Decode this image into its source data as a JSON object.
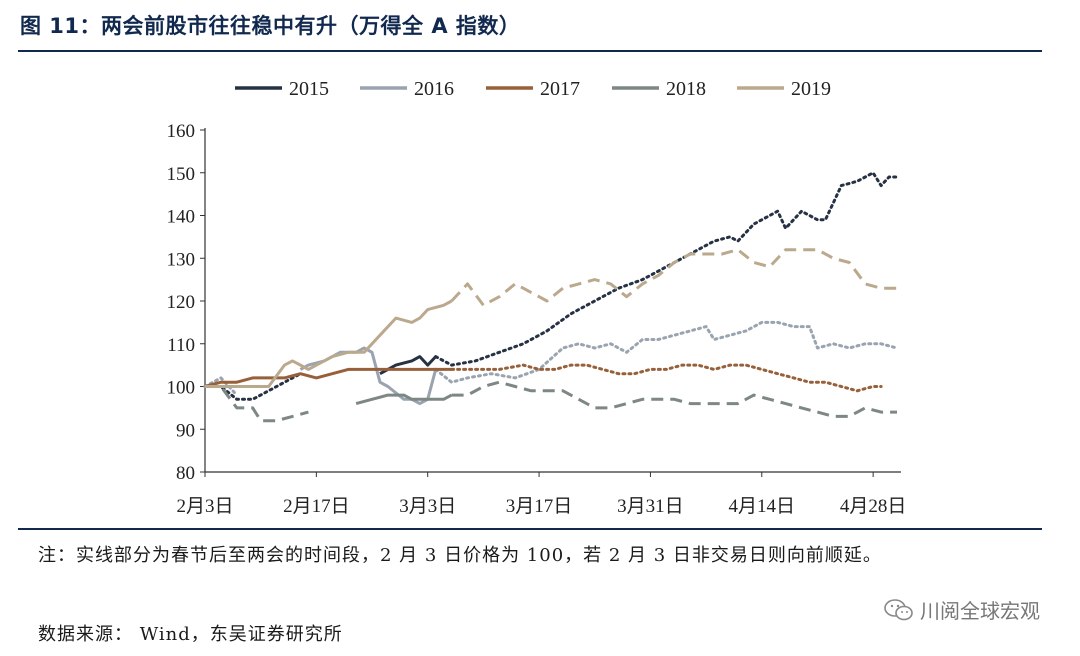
{
  "title": "图 11：两会前股市往往稳中有升（万得全 A 指数）",
  "note": "注：实线部分为春节后至两会的时间段，2 月 3 日价格为 100，若 2 月 3 日非交易日则向前顺延。",
  "source": "数据来源：   Wind，东吴证券研究所",
  "watermark": "川阅全球宏观",
  "watermark_icon": "wechat-icon",
  "chart_data": {
    "type": "line",
    "y_ticks": [
      "80",
      "90",
      "100",
      "110",
      "120",
      "130",
      "140",
      "150",
      "160"
    ],
    "ylim": [
      80,
      160
    ],
    "x_ticks": [
      "2月3日",
      "2月17日",
      "3月3日",
      "3月17日",
      "3月31日",
      "4月14日",
      "4月28日"
    ],
    "x_tick_days": [
      0,
      14,
      28,
      42,
      56,
      70,
      84
    ],
    "xlim": [
      0,
      87
    ],
    "legend": [
      {
        "name": "2015",
        "color": "#263244"
      },
      {
        "name": "2016",
        "color": "#9aa3b0"
      },
      {
        "name": "2017",
        "color": "#98603a"
      },
      {
        "name": "2018",
        "color": "#7d8784"
      },
      {
        "name": "2019",
        "color": "#bba98e"
      }
    ],
    "series": [
      {
        "name": "2015",
        "color": "#263244",
        "dash_style": "dotted",
        "segments": [
          {
            "style": "dotted",
            "points": [
              [
                0,
                100
              ],
              [
                2,
                100
              ],
              [
                4,
                97
              ],
              [
                6,
                97
              ],
              [
                8,
                99
              ],
              [
                10,
                101
              ],
              [
                12,
                103
              ]
            ]
          },
          {
            "style": "solid",
            "points": [
              [
                22,
                103
              ],
              [
                24,
                105
              ],
              [
                26,
                106
              ],
              [
                27,
                107
              ],
              [
                28,
                105
              ],
              [
                29,
                107
              ]
            ]
          },
          {
            "style": "dotted",
            "points": [
              [
                29,
                107
              ],
              [
                31,
                105
              ],
              [
                34,
                106
              ],
              [
                37,
                108
              ],
              [
                40,
                110
              ],
              [
                43,
                113
              ],
              [
                46,
                117
              ],
              [
                49,
                120
              ],
              [
                52,
                123
              ],
              [
                55,
                125
              ],
              [
                58,
                128
              ],
              [
                60,
                130
              ],
              [
                62,
                132
              ],
              [
                64,
                134
              ],
              [
                66,
                135
              ],
              [
                67,
                134
              ],
              [
                69,
                138
              ],
              [
                71,
                140
              ],
              [
                72,
                141
              ],
              [
                73,
                137
              ],
              [
                75,
                141
              ],
              [
                77,
                139
              ],
              [
                78,
                139
              ],
              [
                79,
                143
              ],
              [
                80,
                147
              ],
              [
                82,
                148
              ],
              [
                83,
                149
              ],
              [
                84,
                150
              ],
              [
                85,
                147
              ],
              [
                86,
                149
              ],
              [
                87,
                149
              ]
            ]
          }
        ]
      },
      {
        "name": "2016",
        "color": "#9aa3b0",
        "segments": [
          {
            "style": "dotted",
            "points": [
              [
                0,
                100
              ],
              [
                1,
                101
              ],
              [
                2,
                102
              ],
              [
                4,
                98
              ]
            ]
          },
          {
            "style": "solid",
            "points": [
              [
                12,
                104
              ],
              [
                13,
                105
              ],
              [
                15,
                106
              ],
              [
                17,
                108
              ],
              [
                19,
                108
              ],
              [
                20,
                109
              ],
              [
                21,
                108
              ],
              [
                22,
                101
              ],
              [
                23,
                100
              ],
              [
                25,
                97
              ],
              [
                26,
                97
              ],
              [
                27,
                96
              ],
              [
                28,
                97
              ],
              [
                29,
                104
              ]
            ]
          },
          {
            "style": "dotted",
            "points": [
              [
                29,
                104
              ],
              [
                31,
                101
              ],
              [
                33,
                102
              ],
              [
                36,
                103
              ],
              [
                39,
                102
              ],
              [
                42,
                104
              ],
              [
                45,
                109
              ],
              [
                47,
                110
              ],
              [
                49,
                109
              ],
              [
                51,
                110
              ],
              [
                53,
                108
              ],
              [
                55,
                111
              ],
              [
                57,
                111
              ],
              [
                59,
                112
              ],
              [
                61,
                113
              ],
              [
                63,
                114
              ],
              [
                64,
                111
              ],
              [
                66,
                112
              ],
              [
                68,
                113
              ],
              [
                70,
                115
              ],
              [
                72,
                115
              ],
              [
                74,
                114
              ],
              [
                76,
                114
              ],
              [
                77,
                109
              ],
              [
                79,
                110
              ],
              [
                81,
                109
              ],
              [
                83,
                110
              ],
              [
                85,
                110
              ],
              [
                87,
                109
              ]
            ]
          }
        ]
      },
      {
        "name": "2017",
        "color": "#98603a",
        "segments": [
          {
            "style": "solid",
            "points": [
              [
                0,
                100
              ],
              [
                2,
                101
              ],
              [
                4,
                101
              ],
              [
                6,
                102
              ],
              [
                8,
                102
              ],
              [
                10,
                102
              ],
              [
                12,
                103
              ],
              [
                14,
                102
              ],
              [
                16,
                103
              ],
              [
                18,
                104
              ],
              [
                20,
                104
              ],
              [
                22,
                104
              ],
              [
                24,
                104
              ],
              [
                26,
                104
              ],
              [
                28,
                104
              ],
              [
                30,
                104
              ],
              [
                31,
                104
              ]
            ]
          },
          {
            "style": "dotted",
            "points": [
              [
                31,
                104
              ],
              [
                34,
                104
              ],
              [
                37,
                104
              ],
              [
                40,
                105
              ],
              [
                42,
                104
              ],
              [
                44,
                104
              ],
              [
                46,
                105
              ],
              [
                48,
                105
              ],
              [
                50,
                104
              ],
              [
                52,
                103
              ],
              [
                54,
                103
              ],
              [
                56,
                104
              ],
              [
                58,
                104
              ],
              [
                60,
                105
              ],
              [
                62,
                105
              ],
              [
                64,
                104
              ],
              [
                66,
                105
              ],
              [
                68,
                105
              ],
              [
                70,
                104
              ],
              [
                72,
                103
              ],
              [
                74,
                102
              ],
              [
                76,
                101
              ],
              [
                78,
                101
              ],
              [
                80,
                100
              ],
              [
                82,
                99
              ],
              [
                84,
                100
              ],
              [
                85,
                100
              ]
            ]
          }
        ]
      },
      {
        "name": "2018",
        "color": "#7d8784",
        "segments": [
          {
            "style": "dashed",
            "points": [
              [
                0,
                100
              ],
              [
                2,
                100
              ],
              [
                4,
                95
              ],
              [
                6,
                95
              ],
              [
                7,
                92
              ],
              [
                9,
                92
              ],
              [
                11,
                93
              ],
              [
                13,
                94
              ]
            ]
          },
          {
            "style": "solid",
            "points": [
              [
                19,
                96
              ],
              [
                21,
                97
              ],
              [
                23,
                98
              ],
              [
                25,
                98
              ],
              [
                26,
                97
              ],
              [
                28,
                97
              ],
              [
                30,
                97
              ],
              [
                31,
                98
              ]
            ]
          },
          {
            "style": "dashed",
            "points": [
              [
                31,
                98
              ],
              [
                33,
                98
              ],
              [
                35,
                100
              ],
              [
                37,
                101
              ],
              [
                39,
                100
              ],
              [
                41,
                99
              ],
              [
                43,
                99
              ],
              [
                45,
                99
              ],
              [
                47,
                97
              ],
              [
                49,
                95
              ],
              [
                51,
                95
              ],
              [
                53,
                96
              ],
              [
                55,
                97
              ],
              [
                57,
                97
              ],
              [
                59,
                97
              ],
              [
                61,
                96
              ],
              [
                63,
                96
              ],
              [
                65,
                96
              ],
              [
                67,
                96
              ],
              [
                69,
                98
              ],
              [
                71,
                97
              ],
              [
                73,
                96
              ],
              [
                75,
                95
              ],
              [
                77,
                94
              ],
              [
                79,
                93
              ],
              [
                81,
                93
              ],
              [
                83,
                95
              ],
              [
                85,
                94
              ],
              [
                87,
                94
              ]
            ]
          }
        ]
      },
      {
        "name": "2019",
        "color": "#bba98e",
        "segments": [
          {
            "style": "solid",
            "points": [
              [
                0,
                100
              ],
              [
                2,
                100
              ],
              [
                4,
                100
              ],
              [
                6,
                100
              ],
              [
                8,
                100
              ],
              [
                10,
                105
              ],
              [
                11,
                106
              ],
              [
                12,
                105
              ],
              [
                13,
                104
              ],
              [
                14,
                105
              ],
              [
                16,
                107
              ],
              [
                18,
                108
              ],
              [
                20,
                108
              ],
              [
                22,
                112
              ],
              [
                24,
                116
              ],
              [
                26,
                115
              ],
              [
                27,
                116
              ],
              [
                28,
                118
              ],
              [
                30,
                119
              ],
              [
                31,
                120
              ]
            ]
          },
          {
            "style": "dashed",
            "points": [
              [
                31,
                120
              ],
              [
                33,
                124
              ],
              [
                35,
                119
              ],
              [
                37,
                121
              ],
              [
                39,
                124
              ],
              [
                41,
                122
              ],
              [
                43,
                120
              ],
              [
                45,
                123
              ],
              [
                47,
                124
              ],
              [
                49,
                125
              ],
              [
                51,
                124
              ],
              [
                53,
                121
              ],
              [
                55,
                124
              ],
              [
                57,
                126
              ],
              [
                59,
                129
              ],
              [
                61,
                131
              ],
              [
                63,
                131
              ],
              [
                65,
                131
              ],
              [
                67,
                132
              ],
              [
                69,
                129
              ],
              [
                71,
                128
              ],
              [
                73,
                132
              ],
              [
                75,
                132
              ],
              [
                77,
                132
              ],
              [
                79,
                130
              ],
              [
                81,
                129
              ],
              [
                83,
                124
              ],
              [
                85,
                123
              ],
              [
                87,
                123
              ]
            ]
          }
        ]
      }
    ]
  }
}
